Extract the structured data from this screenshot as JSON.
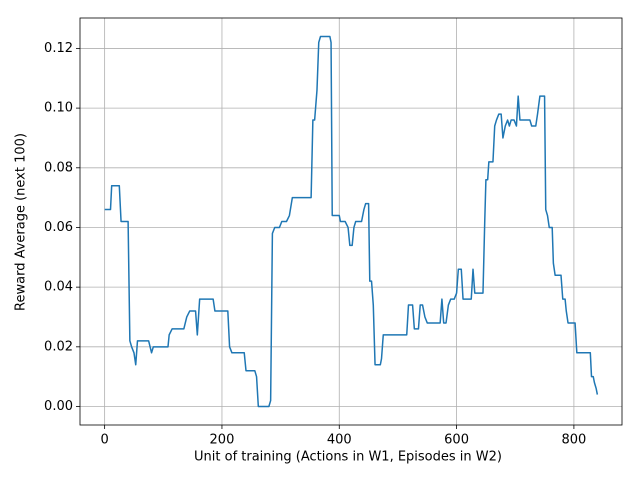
{
  "chart_data": {
    "type": "line",
    "xlabel": "Unit of training (Actions in W1, Episodes in W2)",
    "ylabel": "Reward Average (next 100)",
    "xlim": [
      -42,
      882
    ],
    "ylim": [
      -0.0062,
      0.1302
    ],
    "xticks": [
      0,
      200,
      400,
      600,
      800
    ],
    "yticks": [
      {
        "value": 0,
        "label": "0.00"
      },
      {
        "value": 0.02,
        "label": "0.02"
      },
      {
        "value": 0.04,
        "label": "0.04"
      },
      {
        "value": 0.06,
        "label": "0.06"
      },
      {
        "value": 0.08,
        "label": "0.08"
      },
      {
        "value": 0.1,
        "label": "0.10"
      },
      {
        "value": 0.12,
        "label": "0.12"
      }
    ],
    "grid": true,
    "series": [
      {
        "color": "#1f77b4",
        "x": [
          0,
          5,
          10,
          12,
          20,
          25,
          28,
          35,
          40,
          43,
          46,
          50,
          53,
          56,
          65,
          75,
          80,
          83,
          90,
          100,
          108,
          110,
          115,
          125,
          135,
          140,
          145,
          155,
          158,
          162,
          170,
          185,
          188,
          200,
          210,
          213,
          217,
          230,
          238,
          241,
          250,
          256,
          259,
          262,
          270,
          280,
          283,
          286,
          290,
          298,
          302,
          310,
          315,
          320,
          330,
          345,
          352,
          355,
          358,
          362,
          365,
          368,
          378,
          384,
          386,
          388,
          395,
          400,
          402,
          410,
          415,
          418,
          422,
          425,
          428,
          438,
          442,
          445,
          450,
          452,
          455,
          458,
          461,
          470,
          472,
          475,
          485,
          500,
          515,
          518,
          525,
          528,
          535,
          538,
          542,
          546,
          550,
          565,
          572,
          575,
          578,
          582,
          586,
          590,
          596,
          600,
          603,
          608,
          611,
          615,
          625,
          628,
          631,
          645,
          648,
          650,
          653,
          655,
          662,
          665,
          668,
          672,
          676,
          679,
          683,
          687,
          690,
          693,
          698,
          702,
          705,
          708,
          715,
          725,
          728,
          735,
          738,
          742,
          750,
          752,
          755,
          758,
          763,
          765,
          768,
          778,
          781,
          785,
          787,
          790,
          802,
          805,
          815,
          820,
          828,
          830,
          833,
          835,
          838,
          840
        ],
        "values": [
          0.066,
          0.066,
          0.066,
          0.074,
          0.074,
          0.074,
          0.062,
          0.062,
          0.062,
          0.022,
          0.02,
          0.018,
          0.014,
          0.022,
          0.022,
          0.022,
          0.018,
          0.02,
          0.02,
          0.02,
          0.02,
          0.024,
          0.026,
          0.026,
          0.026,
          0.03,
          0.032,
          0.032,
          0.024,
          0.036,
          0.036,
          0.036,
          0.032,
          0.032,
          0.032,
          0.02,
          0.018,
          0.018,
          0.018,
          0.012,
          0.012,
          0.012,
          0.01,
          0.0,
          0.0,
          0.0,
          0.002,
          0.058,
          0.06,
          0.06,
          0.062,
          0.062,
          0.064,
          0.07,
          0.07,
          0.07,
          0.07,
          0.096,
          0.096,
          0.106,
          0.122,
          0.124,
          0.124,
          0.124,
          0.122,
          0.064,
          0.064,
          0.064,
          0.062,
          0.062,
          0.06,
          0.054,
          0.054,
          0.06,
          0.062,
          0.062,
          0.066,
          0.068,
          0.068,
          0.042,
          0.042,
          0.034,
          0.014,
          0.014,
          0.016,
          0.024,
          0.024,
          0.024,
          0.024,
          0.034,
          0.034,
          0.026,
          0.026,
          0.034,
          0.034,
          0.03,
          0.028,
          0.028,
          0.028,
          0.036,
          0.028,
          0.028,
          0.034,
          0.036,
          0.036,
          0.038,
          0.046,
          0.046,
          0.036,
          0.036,
          0.036,
          0.046,
          0.038,
          0.038,
          0.062,
          0.076,
          0.076,
          0.082,
          0.082,
          0.094,
          0.096,
          0.098,
          0.098,
          0.09,
          0.094,
          0.096,
          0.094,
          0.096,
          0.096,
          0.094,
          0.104,
          0.096,
          0.096,
          0.096,
          0.094,
          0.094,
          0.098,
          0.104,
          0.104,
          0.066,
          0.064,
          0.06,
          0.06,
          0.048,
          0.044,
          0.044,
          0.036,
          0.036,
          0.032,
          0.028,
          0.028,
          0.018,
          0.018,
          0.018,
          0.018,
          0.01,
          0.01,
          0.008,
          0.006,
          0.004
        ]
      }
    ]
  }
}
